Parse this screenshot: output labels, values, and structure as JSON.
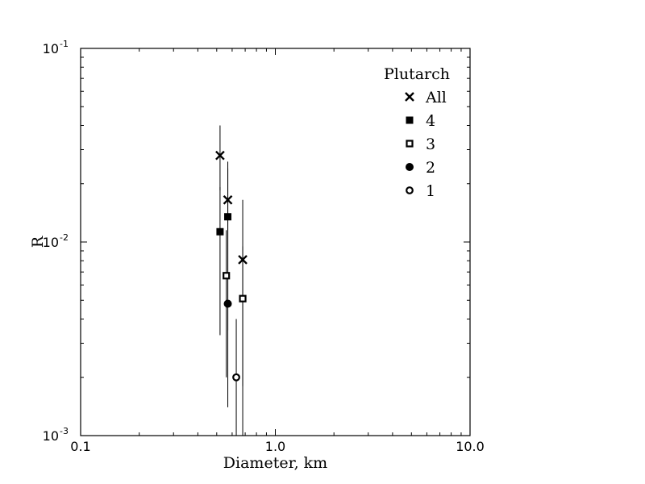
{
  "chart_data": {
    "type": "scatter",
    "title": "",
    "xlabel": "Diameter, km",
    "ylabel": "R",
    "xscale": "log",
    "yscale": "log",
    "xlim": [
      0.1,
      10.0
    ],
    "ylim": [
      0.001,
      0.1
    ],
    "x_ticks": [
      {
        "value": 0.1,
        "label": "0.1"
      },
      {
        "value": 1.0,
        "label": "1.0"
      },
      {
        "value": 10.0,
        "label": "10.0"
      }
    ],
    "y_ticks": [
      {
        "value": 0.001,
        "base": "10",
        "exp": "-3"
      },
      {
        "value": 0.01,
        "base": "10",
        "exp": "-2"
      },
      {
        "value": 0.1,
        "base": "10",
        "exp": "-1"
      }
    ],
    "grid": false,
    "legend": {
      "title": "Plutarch",
      "placement": "top-right"
    },
    "series": [
      {
        "name": "All",
        "marker": "x",
        "points": [
          {
            "x": 0.52,
            "y": 0.028,
            "ylow": 0.0185,
            "yhigh": 0.04
          },
          {
            "x": 0.57,
            "y": 0.0165,
            "ylow": 0.0085,
            "yhigh": 0.024
          },
          {
            "x": 0.68,
            "y": 0.0081,
            "ylow": 0.0018,
            "yhigh": 0.0165
          }
        ]
      },
      {
        "name": "4",
        "marker": "filled-square",
        "points": [
          {
            "x": 0.52,
            "y": 0.0113,
            "ylow": 0.0033,
            "yhigh": 0.0192
          },
          {
            "x": 0.57,
            "y": 0.0135,
            "ylow": 0.0035,
            "yhigh": 0.026
          }
        ]
      },
      {
        "name": "3",
        "marker": "open-square",
        "points": [
          {
            "x": 0.56,
            "y": 0.0067,
            "ylow": 0.002,
            "yhigh": 0.0115
          },
          {
            "x": 0.68,
            "y": 0.0051,
            "ylow": 0.001,
            "yhigh": 0.0095
          }
        ]
      },
      {
        "name": "2",
        "marker": "filled-circle",
        "points": [
          {
            "x": 0.57,
            "y": 0.0048,
            "ylow": 0.0014,
            "yhigh": 0.0085
          }
        ]
      },
      {
        "name": "1",
        "marker": "open-circle",
        "points": [
          {
            "x": 0.63,
            "y": 0.002,
            "ylow": 0.001,
            "yhigh": 0.004
          }
        ]
      }
    ]
  }
}
